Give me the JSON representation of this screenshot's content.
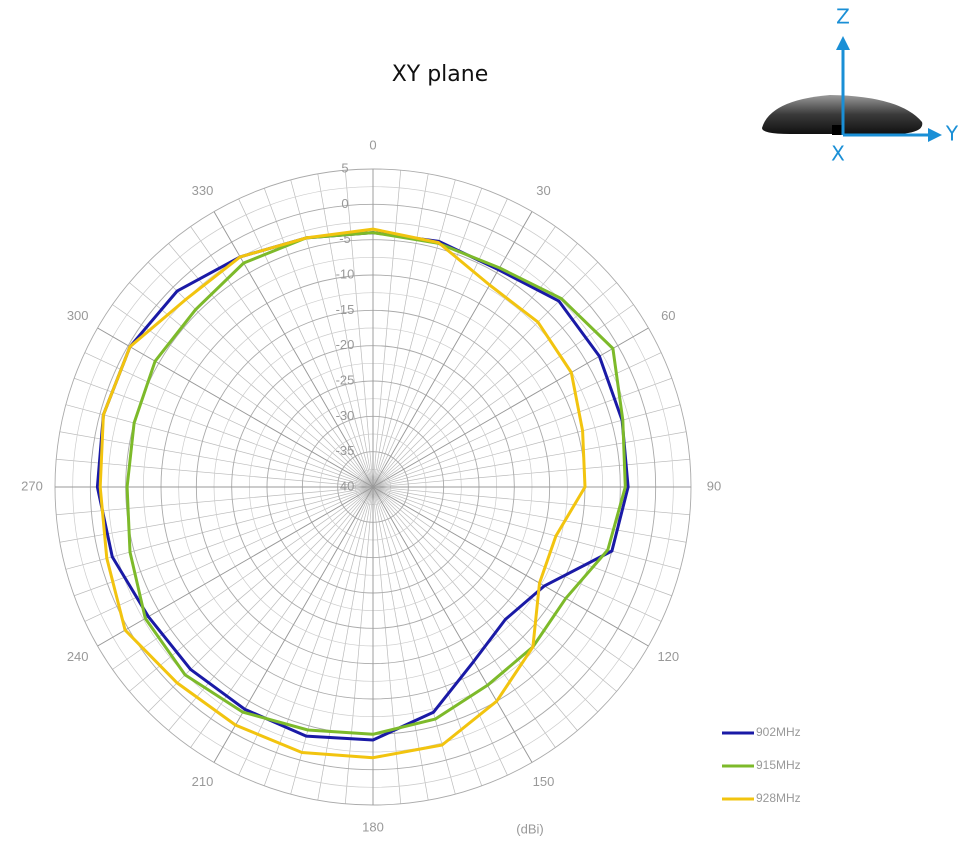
{
  "chart_data": {
    "type": "polar",
    "title": "XY plane",
    "radial_unit": "(dBi)",
    "orientation_labels": [
      "Z",
      "Y",
      "X"
    ],
    "ylim": [
      -40,
      5
    ],
    "yticks": [
      -40,
      -35,
      -30,
      -25,
      -20,
      -15,
      -10,
      -5,
      0,
      5
    ],
    "thetaticks": [
      0,
      30,
      60,
      90,
      120,
      150,
      180,
      210,
      240,
      270,
      300,
      330
    ],
    "theta": [
      0,
      15,
      30,
      45,
      60,
      75,
      90,
      105,
      120,
      135,
      150,
      165,
      180,
      195,
      210,
      225,
      240,
      255,
      270,
      285,
      300,
      315,
      330,
      345
    ],
    "series": [
      {
        "name": "902MHz",
        "color": "#1a1aa6",
        "values": [
          -4,
          -4,
          -4.5,
          -2.8,
          -3,
          -3.5,
          -3.9,
          -5,
          -12,
          -13.5,
          -11.5,
          -7,
          -4.2,
          -3.5,
          -3.7,
          -3.5,
          -3.3,
          -1.8,
          -1,
          -0.5,
          -0.3,
          -0.8,
          -2.4,
          -3.5
        ]
      },
      {
        "name": "915MHz",
        "color": "#7dba2a",
        "values": [
          -4,
          -4.3,
          -4.2,
          -2.3,
          -0.8,
          -3.4,
          -4.3,
          -5.6,
          -8.5,
          -8,
          -7.6,
          -6,
          -5,
          -4.4,
          -3.2,
          -2.4,
          -2.8,
          -4.4,
          -5.2,
          -5,
          -4.4,
          -4.5,
          -3.4,
          -3.5
        ]
      },
      {
        "name": "928MHz",
        "color": "#f2c40f",
        "values": [
          -3.5,
          -4.2,
          -7,
          -7,
          -7.6,
          -9.3,
          -10,
          -13.2,
          -12.8,
          -8,
          -5,
          -2.2,
          -1.7,
          -1.1,
          -1.1,
          -0.8,
          0.5,
          -1,
          -1.4,
          -0.5,
          -0.3,
          -2.5,
          -2.4,
          -3.5
        ]
      }
    ]
  }
}
